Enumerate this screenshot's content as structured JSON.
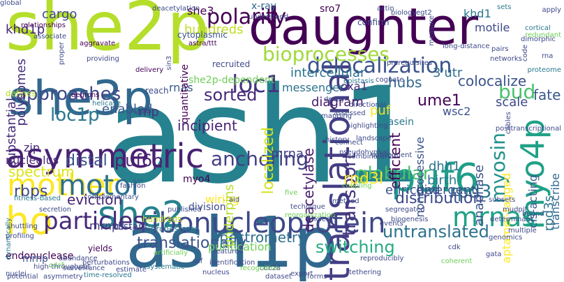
{
  "words": [
    {
      "text": "ash1",
      "color": "#26828e"
    },
    {
      "text": "ash1p",
      "color": "#31688e"
    },
    {
      "text": "she2p",
      "color": "#b5de2b"
    },
    {
      "text": "daughter",
      "color": "#440154"
    },
    {
      "text": "she3p",
      "color": "#31688e"
    },
    {
      "text": "asymmetric",
      "color": "#482173"
    },
    {
      "text": "puf6",
      "color": "#1f9e89"
    },
    {
      "text": "she2",
      "color": "#26828e"
    },
    {
      "text": "ribonucleoprotein",
      "color": "#3e4989"
    },
    {
      "text": "translational",
      "color": "#433e85"
    },
    {
      "text": "myo4p",
      "color": "#1fa187"
    },
    {
      "text": "mrnas",
      "color": "#1fa187"
    },
    {
      "text": "mother",
      "color": "#fde725"
    },
    {
      "text": "ho",
      "color": "#fde725"
    },
    {
      "text": "motor",
      "color": "#2d708e"
    },
    {
      "text": "particles",
      "color": "#472a7a"
    },
    {
      "text": "delocalization",
      "color": "#3b528b"
    },
    {
      "text": "polarity",
      "color": "#440154"
    },
    {
      "text": "bioprocesses",
      "color": "#9fda3a"
    },
    {
      "text": "loc1",
      "color": "#46337e"
    },
    {
      "text": "loc1p",
      "color": "#2a788e"
    },
    {
      "text": "puf6p",
      "color": "#481f70"
    },
    {
      "text": "anchoring",
      "color": "#433e85"
    },
    {
      "text": "globular",
      "color": "#4ac16d"
    },
    {
      "text": "myosin",
      "color": "#21918c"
    },
    {
      "text": "transport",
      "color": "#46337e"
    },
    {
      "text": "rpd3",
      "color": "#2a788e"
    },
    {
      "text": "distribution",
      "color": "#3e4989"
    },
    {
      "text": "untranslated",
      "color": "#2c728e"
    },
    {
      "text": "sorted",
      "color": "#482878"
    },
    {
      "text": "bud",
      "color": "#4ac16d"
    },
    {
      "text": "fate",
      "color": "#38598c"
    },
    {
      "text": "approaches",
      "color": "#3e4989"
    },
    {
      "text": "localized",
      "color": "#d2e21b"
    },
    {
      "text": "deacetylase",
      "color": "#481a6c"
    },
    {
      "text": "translationally",
      "color": "#3b528b"
    },
    {
      "text": "switching",
      "color": "#25ab82"
    },
    {
      "text": "spectrometry",
      "color": "#2d708e"
    },
    {
      "text": "rbps",
      "color": "#3e4989"
    },
    {
      "text": "eviction",
      "color": "#482475"
    },
    {
      "text": "distal",
      "color": "#3b528b"
    },
    {
      "text": "spectrum",
      "color": "#dde318"
    },
    {
      "text": "khd1p",
      "color": "#482878"
    },
    {
      "text": "cargo",
      "color": "#3e4989"
    },
    {
      "text": "hundreds",
      "color": "#c2df23"
    },
    {
      "text": "she3",
      "color": "#440154"
    },
    {
      "text": "x-ray",
      "color": "#31688e"
    },
    {
      "text": "sro7",
      "color": "#440154"
    },
    {
      "text": "khd1",
      "color": "#2a788e"
    },
    {
      "text": "motile",
      "color": "#3e4989"
    },
    {
      "text": "colocalize",
      "color": "#3b528b"
    },
    {
      "text": "3'utr",
      "color": "#2d708e"
    },
    {
      "text": "hubs",
      "color": "#31688e"
    },
    {
      "text": "intercellular",
      "color": "#2c728e"
    },
    {
      "text": "polysomes",
      "color": "#472d7b"
    },
    {
      "text": "substantial",
      "color": "#472d7b"
    },
    {
      "text": "rnas",
      "color": "#38598c"
    },
    {
      "text": "oxa1",
      "color": "#472d7b"
    },
    {
      "text": "messenger",
      "color": "#2c728e"
    },
    {
      "text": "diagram",
      "color": "#481a6c"
    },
    {
      "text": "wsc2",
      "color": "#3b528b"
    },
    {
      "text": "ume1",
      "color": "#440154"
    },
    {
      "text": "scale",
      "color": "#3e4989"
    },
    {
      "text": "casein",
      "color": "#2a788e"
    },
    {
      "text": "puf",
      "color": "#fde725"
    },
    {
      "text": "enabled",
      "color": "#38598c"
    },
    {
      "text": "rnp",
      "color": "#46337e"
    },
    {
      "text": "incipient",
      "color": "#482475"
    },
    {
      "text": "mrna",
      "color": "#433e85"
    },
    {
      "text": "zip",
      "color": "#482878"
    },
    {
      "text": "nucleolus",
      "color": "#482878"
    },
    {
      "text": "rpd3l",
      "color": "#fde725"
    },
    {
      "text": "rpd3s",
      "color": "#2c728e"
    },
    {
      "text": "anaphase",
      "color": "#3b528b"
    },
    {
      "text": "cis-acting",
      "color": "#38598c"
    },
    {
      "text": "transcribe",
      "color": "#31688e"
    },
    {
      "text": "myo4",
      "color": "#440154"
    },
    {
      "text": "wiring",
      "color": "#fde725"
    },
    {
      "text": "division",
      "color": "#3e4989"
    },
    {
      "text": "purification",
      "color": "#6ece58"
    },
    {
      "text": "underpins",
      "color": "#b5de2b"
    },
    {
      "text": "efficient",
      "color": "#440154"
    },
    {
      "text": "enriched",
      "color": "#3b528b"
    },
    {
      "text": "divergent",
      "color": "#3b528b"
    },
    {
      "text": "dhh1",
      "color": "#2c728e"
    },
    {
      "text": "mrnps",
      "color": "#443983"
    },
    {
      "text": "birth",
      "color": "#2a788e"
    },
    {
      "text": "nonprocessive",
      "color": "#3b528b"
    },
    {
      "text": "aptamer-tagged",
      "color": "#fde725"
    },
    {
      "text": "endonuclease",
      "color": "#440154"
    },
    {
      "text": "mrnp",
      "color": "#3b528b"
    },
    {
      "text": "yields",
      "color": "#440154"
    },
    {
      "text": "distant",
      "color": "#3e4989"
    },
    {
      "text": "hundreds",
      "color": "#c2df23"
    },
    {
      "text": "orchestrate",
      "color": "#2a788e"
    },
    {
      "text": "she2p-dependent",
      "color": "#6ece58"
    },
    {
      "text": "reach",
      "color": "#3e4989"
    },
    {
      "text": "recruited",
      "color": "#3e4989"
    },
    {
      "text": "quantitative",
      "color": "#440154"
    },
    {
      "text": "cytoplasmic",
      "color": "#3b528b"
    },
    {
      "text": "astra/ttt",
      "color": "#440154"
    },
    {
      "text": "delivery",
      "color": "#440154"
    },
    {
      "text": "aggravate",
      "color": "#440154"
    },
    {
      "text": "providing",
      "color": "#3e4989"
    },
    {
      "text": "deacetylation",
      "color": "#3e4989"
    },
    {
      "text": "confirm",
      "color": "#3e4989"
    },
    {
      "text": "egt2",
      "color": "#3e4989"
    },
    {
      "text": "understand",
      "color": "#3e4989"
    },
    {
      "text": "sin3",
      "color": "#3e4989"
    },
    {
      "text": "relationships",
      "color": "#440154"
    },
    {
      "text": "associate",
      "color": "#3e4989"
    },
    {
      "text": "proper",
      "color": "#3e4989"
    },
    {
      "text": "defines",
      "color": "#b5de2b"
    },
    {
      "text": "degrons",
      "color": "#440154"
    },
    {
      "text": "helicase",
      "color": "#2a788e"
    },
    {
      "text": "fitness-based",
      "color": "#2a788e"
    },
    {
      "text": "secretion",
      "color": "#3e4989"
    },
    {
      "text": "complementary",
      "color": "#3b528b"
    },
    {
      "text": "fashion",
      "color": "#3e4989"
    },
    {
      "text": "published",
      "color": "#3e4989"
    },
    {
      "text": "shuttling",
      "color": "#3e4989"
    },
    {
      "text": "profiling",
      "color": "#3e4989"
    },
    {
      "text": "abundance",
      "color": "#3e4989"
    },
    {
      "text": "dynamically",
      "color": "#2a788e"
    },
    {
      "text": "high-throughput",
      "color": "#3e4989"
    },
    {
      "text": "perturbations",
      "color": "#3e4989"
    },
    {
      "text": "cdc5",
      "color": "#6ece58"
    },
    {
      "text": "nuclei",
      "color": "#3e4989"
    },
    {
      "text": "surveillance",
      "color": "#3e4989"
    },
    {
      "text": "time-resolved",
      "color": "#2a788e"
    },
    {
      "text": "potential",
      "color": "#3e4989"
    },
    {
      "text": "asymmetry",
      "color": "#3e4989"
    },
    {
      "text": "estimate",
      "color": "#3e4989"
    },
    {
      "text": "systematic",
      "color": "#2a788e"
    },
    {
      "text": "artificially",
      "color": "#6ece58"
    },
    {
      "text": "scf",
      "color": "#3e4989"
    },
    {
      "text": "identification",
      "color": "#3e4989"
    },
    {
      "text": "nucleus",
      "color": "#3e4989"
    },
    {
      "text": "cdc28",
      "color": "#3e4989"
    },
    {
      "text": "recognition",
      "color": "#6ece58"
    },
    {
      "text": "dataset",
      "color": "#3e4989"
    },
    {
      "text": "forms",
      "color": "#3e4989"
    },
    {
      "text": "export",
      "color": "#3e4989"
    },
    {
      "text": "tethering",
      "color": "#3e4989"
    },
    {
      "text": "reproducibly",
      "color": "#3e4989"
    },
    {
      "text": "coherent",
      "color": "#6ece58"
    },
    {
      "text": "cdk",
      "color": "#3e4989"
    },
    {
      "text": "gata",
      "color": "#3e4989"
    },
    {
      "text": "genomics",
      "color": "#3e4989"
    },
    {
      "text": "multiple",
      "color": "#3e4989"
    },
    {
      "text": "determinant",
      "color": "#3e4989"
    },
    {
      "text": "bound",
      "color": "#3e4989"
    },
    {
      "text": "mudpit",
      "color": "#3e4989"
    },
    {
      "text": "subsets",
      "color": "#3e4989"
    },
    {
      "text": "cables",
      "color": "#3e4989"
    },
    {
      "text": "posttranscriptional",
      "color": "#3e4989"
    },
    {
      "text": "rna",
      "color": "#3e4989"
    },
    {
      "text": "proteome",
      "color": "#2a788e"
    },
    {
      "text": "code",
      "color": "#3e4989"
    },
    {
      "text": "networks",
      "color": "#3e4989"
    },
    {
      "text": "cortical",
      "color": "#2a788e"
    },
    {
      "text": "apply",
      "color": "#3e4989"
    },
    {
      "text": "redundant",
      "color": "#6ece58"
    },
    {
      "text": "dimorphic",
      "color": "#3e4989"
    },
    {
      "text": "pairs",
      "color": "#3e4989"
    },
    {
      "text": "sets",
      "color": "#2a788e"
    },
    {
      "text": "actin",
      "color": "#3e4989"
    },
    {
      "text": "biology",
      "color": "#3e4989"
    },
    {
      "text": "measure",
      "color": "#3e4989"
    },
    {
      "text": "long-distance",
      "color": "#3e4989"
    },
    {
      "text": "prerequisites",
      "color": "#3e4989"
    },
    {
      "text": "cognate",
      "color": "#3e4989"
    },
    {
      "text": "epistasis",
      "color": "#2a788e"
    },
    {
      "text": "directional",
      "color": "#3e4989"
    },
    {
      "text": "decay",
      "color": "#3e4989"
    },
    {
      "text": "assessed",
      "color": "#3e4989"
    },
    {
      "text": "highlighting",
      "color": "#3e4989"
    },
    {
      "text": "mapping",
      "color": "#3e4989"
    },
    {
      "text": "history",
      "color": "#3e4989"
    },
    {
      "text": "connect",
      "color": "#3e4989"
    },
    {
      "text": "pseudohyphal",
      "color": "#3e4989"
    },
    {
      "text": "combinatorial",
      "color": "#3e4989"
    },
    {
      "text": "five",
      "color": "#6ece58"
    },
    {
      "text": "technique",
      "color": "#3e4989"
    },
    {
      "text": "landscape",
      "color": "#3e4989"
    },
    {
      "text": "subsequent",
      "color": "#3e4989"
    },
    {
      "text": "segregated",
      "color": "#3e4989"
    },
    {
      "text": "biogenesis",
      "color": "#3e4989"
    },
    {
      "text": "events",
      "color": "#3e4989"
    },
    {
      "text": "aid",
      "color": "#3e4989"
    },
    {
      "text": "reorganization",
      "color": "#6ece58"
    },
    {
      "text": "ancient",
      "color": "#3e4989"
    },
    {
      "text": "method",
      "color": "#3e4989"
    },
    {
      "text": "coupling",
      "color": "#6ece58"
    },
    {
      "text": "features",
      "color": "#3e4989"
    },
    {
      "text": "global",
      "color": "#3e4989"
    }
  ]
}
